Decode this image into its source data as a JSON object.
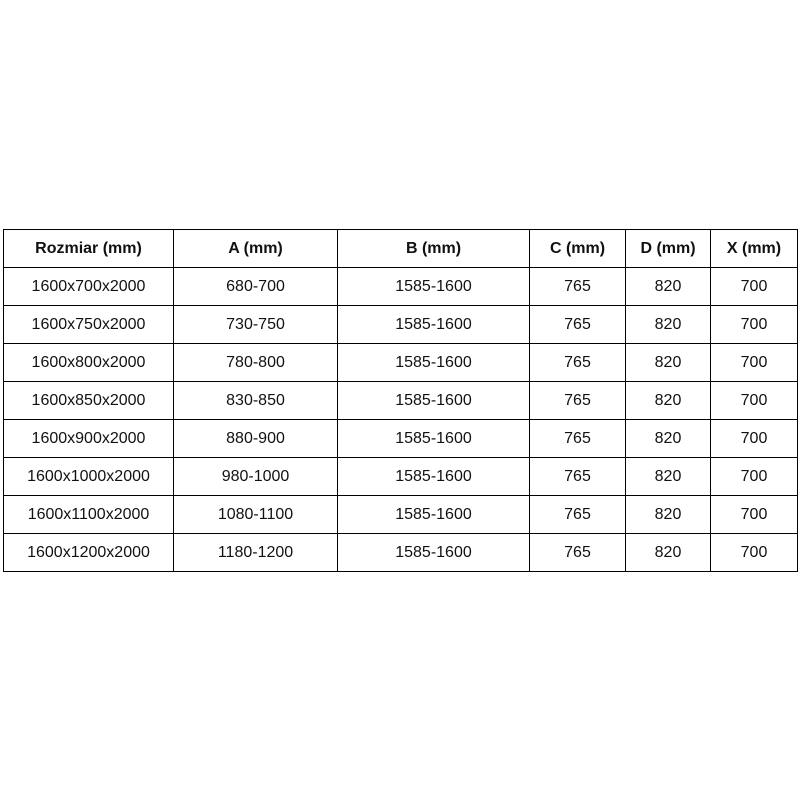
{
  "table": {
    "headers": [
      "Rozmiar (mm)",
      "A (mm)",
      "B (mm)",
      "C (mm)",
      "D (mm)",
      "X (mm)"
    ],
    "rows": [
      [
        "1600x700x2000",
        "680-700",
        "1585-1600",
        "765",
        "820",
        "700"
      ],
      [
        "1600x750x2000",
        "730-750",
        "1585-1600",
        "765",
        "820",
        "700"
      ],
      [
        "1600x800x2000",
        "780-800",
        "1585-1600",
        "765",
        "820",
        "700"
      ],
      [
        "1600x850x2000",
        "830-850",
        "1585-1600",
        "765",
        "820",
        "700"
      ],
      [
        "1600x900x2000",
        "880-900",
        "1585-1600",
        "765",
        "820",
        "700"
      ],
      [
        "1600x1000x2000",
        "980-1000",
        "1585-1600",
        "765",
        "820",
        "700"
      ],
      [
        "1600x1100x2000",
        "1080-1100",
        "1585-1600",
        "765",
        "820",
        "700"
      ],
      [
        "1600x1200x2000",
        "1180-1200",
        "1585-1600",
        "765",
        "820",
        "700"
      ]
    ]
  }
}
